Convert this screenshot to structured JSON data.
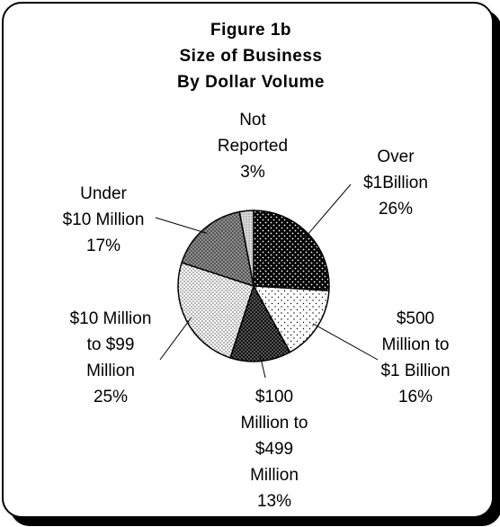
{
  "chart_data": {
    "type": "pie",
    "title_lines": [
      "Figure 1b",
      "Size of Business",
      "By Dollar Volume"
    ],
    "legend": "none",
    "slices": [
      {
        "label_lines": [
          "Over",
          "$1Billion"
        ],
        "value": 26,
        "value_label": "26%",
        "pattern": "dots-dark"
      },
      {
        "label_lines": [
          "$500",
          "Million to",
          "$1 Billion"
        ],
        "value": 16,
        "value_label": "16%",
        "pattern": "dots-sparse"
      },
      {
        "label_lines": [
          "$100",
          "Million to",
          "$499",
          "Million"
        ],
        "value": 13,
        "value_label": "13%",
        "pattern": "dense-dark"
      },
      {
        "label_lines": [
          "$10 Million",
          "to $99",
          "Million"
        ],
        "value": 25,
        "value_label": "25%",
        "pattern": "dots-fine"
      },
      {
        "label_lines": [
          "Under",
          "$10 Million"
        ],
        "value": 17,
        "value_label": "17%",
        "pattern": "grey-dots"
      },
      {
        "label_lines": [
          "Not",
          "Reported"
        ],
        "value": 3,
        "value_label": "3%",
        "pattern": "light-speckle"
      }
    ]
  }
}
